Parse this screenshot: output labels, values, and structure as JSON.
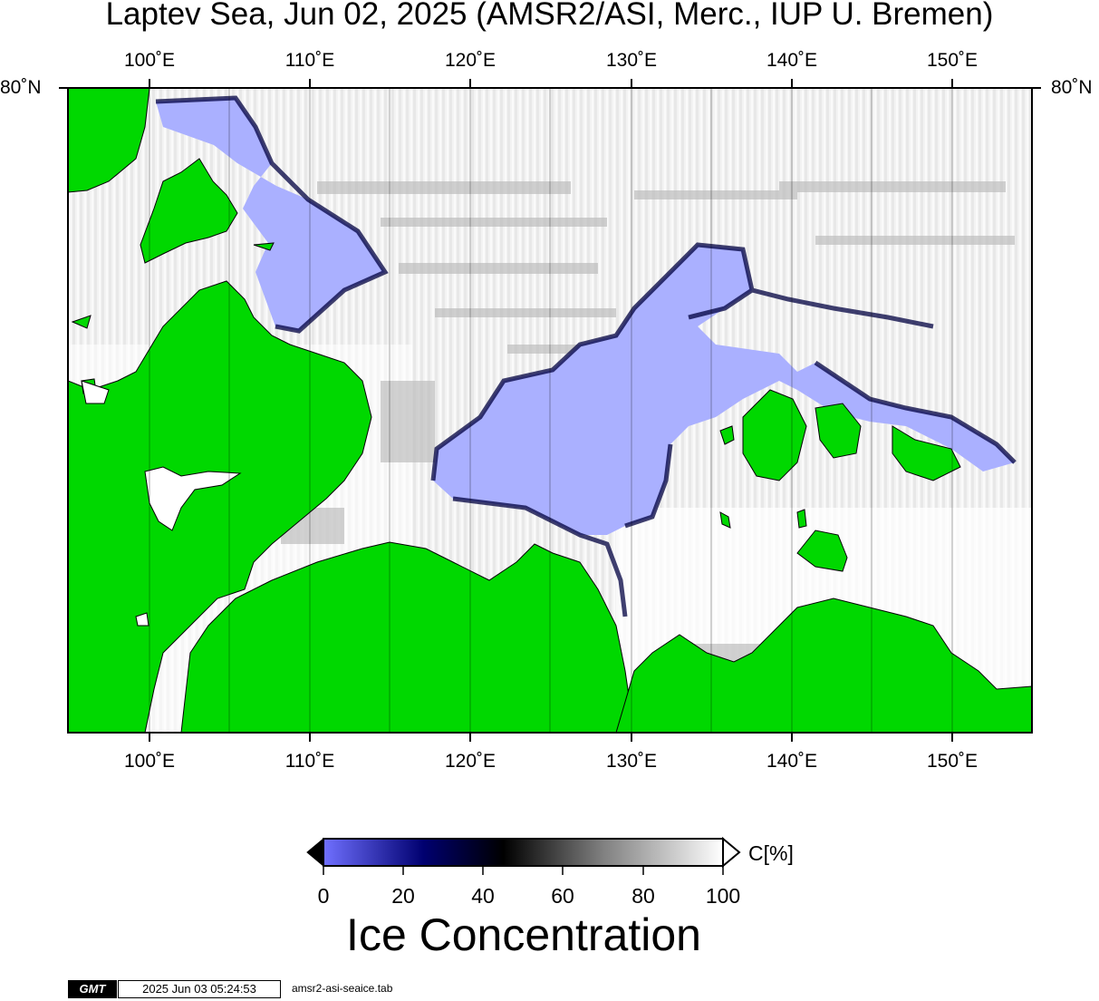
{
  "title": "Laptev Sea, Jun 02, 2025 (AMSR2/ASI, Merc., IUP U. Bremen)",
  "map": {
    "lon_labels": [
      "100˚E",
      "110˚E",
      "120˚E",
      "130˚E",
      "140˚E",
      "150˚E"
    ],
    "lat_label": "80˚N",
    "colors": {
      "land": "#00d800",
      "open_water": "#aab0ff",
      "frame": "#000000"
    }
  },
  "colorbar": {
    "unit_label": "C[%]",
    "ticks": [
      "0",
      "20",
      "40",
      "60",
      "80",
      "100"
    ],
    "title": "Ice Concentration",
    "stops": [
      "#7070ff",
      "#000070",
      "#000000",
      "#808080",
      "#ffffff"
    ]
  },
  "footer": {
    "logo": "GMT",
    "timestamp": "2025 Jun 03 05:24:53",
    "filename": "amsr2-asi-seaice.tab"
  }
}
